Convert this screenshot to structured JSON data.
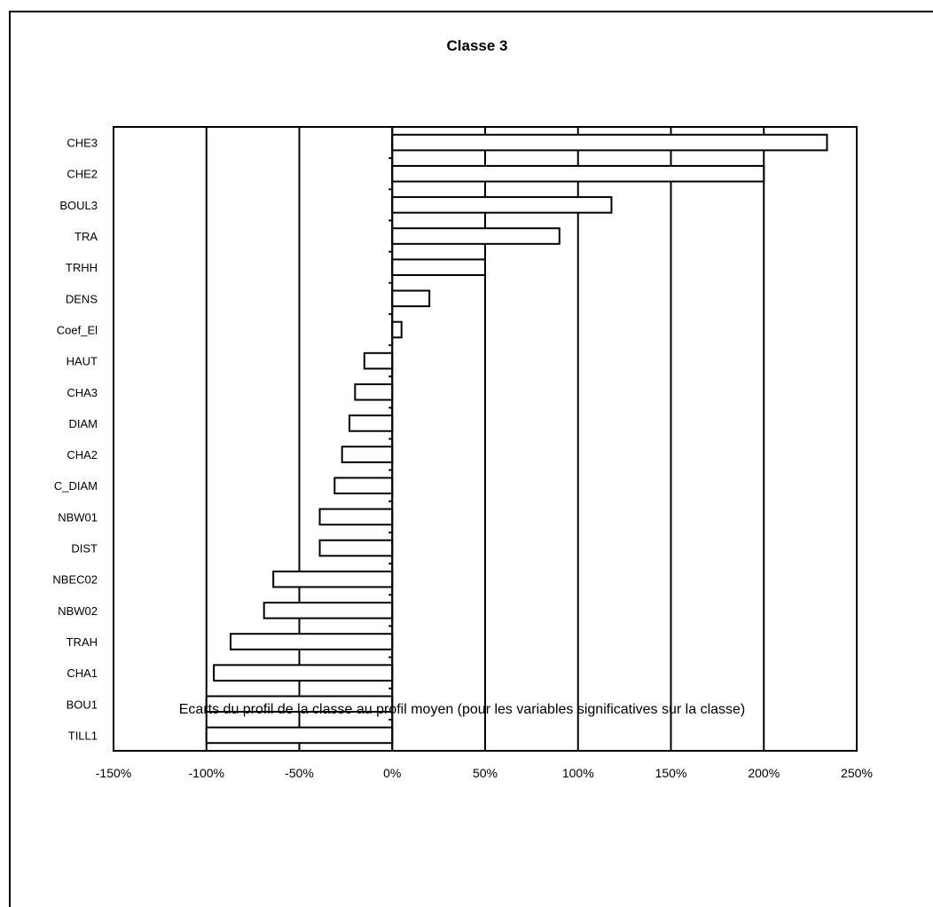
{
  "chart_data": {
    "type": "bar",
    "orientation": "horizontal",
    "title": "Classe 3",
    "caption": "Ecarts du profil de la classe au profil moyen (pour les variables significatives sur la classe)",
    "xlim": [
      -150,
      250
    ],
    "x_ticks": [
      -150,
      -100,
      -50,
      0,
      50,
      100,
      150,
      200,
      250
    ],
    "x_tick_labels": [
      "-150%",
      "-100%",
      "-50%",
      "0%",
      "50%",
      "100%",
      "150%",
      "200%",
      "250%"
    ],
    "grid": true,
    "categories": [
      "CHE3",
      "CHE2",
      "BOUL3",
      "TRA",
      "TRHH",
      "DENS",
      "Coef_El",
      "HAUT",
      "CHA3",
      "DIAM",
      "CHA2",
      "C_DIAM",
      "NBW01",
      "DIST",
      "NBEC02",
      "NBW02",
      "TRAH",
      "CHA1",
      "BOU1",
      "TILL1"
    ],
    "values": [
      234,
      200,
      118,
      90,
      50,
      20,
      5,
      -15,
      -20,
      -23,
      -27,
      -31,
      -39,
      -39,
      -64,
      -69,
      -87,
      -96,
      -100,
      -100
    ]
  }
}
